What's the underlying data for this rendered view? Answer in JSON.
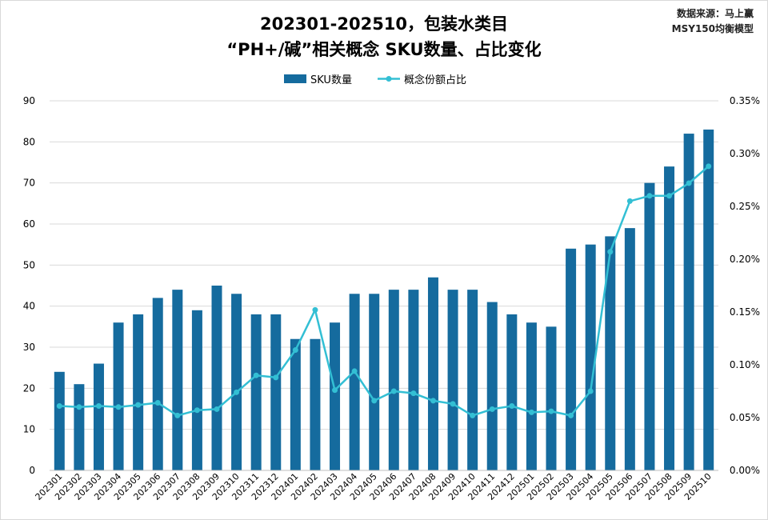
{
  "header": {
    "title_line1": "202301-202510，包装水类目",
    "title_line2": "“PH+/碱”相关概念 SKU数量、占比变化",
    "source_line1": "数据来源：马上赢",
    "source_line2": "MSY150均衡模型"
  },
  "colors": {
    "bar": "#156b9e",
    "line": "#33bfd4",
    "grid": "#d9d9d9",
    "axis": "#bfbfbf"
  },
  "chart_data": {
    "type": "bar+line",
    "categories": [
      "202301",
      "202302",
      "202303",
      "202304",
      "202305",
      "202306",
      "202307",
      "202308",
      "202309",
      "202310",
      "202311",
      "202312",
      "202401",
      "202402",
      "202403",
      "202404",
      "202405",
      "202406",
      "202407",
      "202408",
      "202409",
      "202410",
      "202411",
      "202412",
      "202501",
      "202502",
      "202503",
      "202504",
      "202505",
      "202506",
      "202507",
      "202508",
      "202509",
      "202510"
    ],
    "series": [
      {
        "name": "SKU数量",
        "type": "bar",
        "axis": "left",
        "values": [
          24,
          21,
          26,
          36,
          38,
          42,
          44,
          39,
          45,
          43,
          38,
          38,
          32,
          32,
          36,
          43,
          43,
          44,
          44,
          47,
          44,
          44,
          41,
          38,
          36,
          35,
          54,
          55,
          57,
          59,
          70,
          74,
          82,
          83
        ]
      },
      {
        "name": "概念份额占比",
        "type": "line",
        "axis": "right",
        "values": [
          0.00061,
          0.0006,
          0.00061,
          0.0006,
          0.00062,
          0.00064,
          0.00052,
          0.00057,
          0.00058,
          0.00074,
          0.0009,
          0.00088,
          0.00114,
          0.00152,
          0.00076,
          0.00094,
          0.00066,
          0.00075,
          0.00073,
          0.00066,
          0.00063,
          0.00052,
          0.00058,
          0.00061,
          0.00055,
          0.00056,
          0.00052,
          0.00075,
          0.00207,
          0.00255,
          0.0026,
          0.0026,
          0.00272,
          0.00288
        ]
      }
    ],
    "left_axis": {
      "min": 0,
      "max": 90,
      "step": 10,
      "tick_labels": [
        "0",
        "10",
        "20",
        "30",
        "40",
        "50",
        "60",
        "70",
        "80",
        "90"
      ]
    },
    "right_axis": {
      "min": 0,
      "max": 0.0035,
      "step": 0.0005,
      "tick_labels": [
        "0.00%",
        "0.05%",
        "0.10%",
        "0.15%",
        "0.20%",
        "0.25%",
        "0.30%",
        "0.35%"
      ]
    },
    "grid": true,
    "legend_position": "top-center"
  }
}
